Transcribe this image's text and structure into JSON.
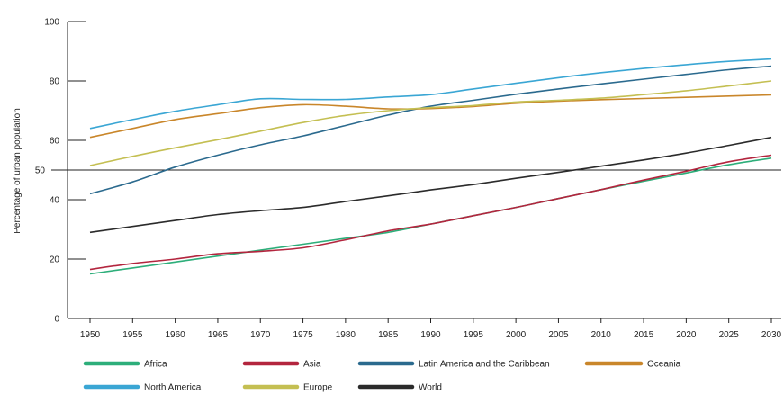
{
  "chart_data": {
    "type": "line",
    "ylabel": "Percentage of urban population",
    "xlabel": "",
    "title": "",
    "x": [
      1950,
      1955,
      1960,
      1965,
      1970,
      1975,
      1980,
      1985,
      1990,
      1995,
      2000,
      2005,
      2010,
      2015,
      2020,
      2025,
      2030
    ],
    "xlim": [
      1950,
      2030
    ],
    "ylim": [
      0,
      100
    ],
    "yticks": [
      0,
      20,
      40,
      50,
      60,
      80,
      100
    ],
    "reference_line": 50,
    "grid": false,
    "legend_placement": "bottom",
    "series": [
      {
        "name": "Africa",
        "color": "#2dae7a",
        "values": [
          15,
          17,
          19,
          21,
          23,
          25,
          27,
          29,
          31.8,
          34.6,
          37.4,
          40.4,
          43.4,
          46.2,
          49,
          51.8,
          54
        ]
      },
      {
        "name": "Asia",
        "color": "#b3253e",
        "values": [
          16.5,
          18.5,
          20,
          21.8,
          22.6,
          23.8,
          26.5,
          29.5,
          31.8,
          34.6,
          37.4,
          40.4,
          43.4,
          46.6,
          49.6,
          52.8,
          55
        ]
      },
      {
        "name": "Latin America and the Caribbean",
        "color": "#2b6a8e",
        "values": [
          42,
          46,
          51,
          55,
          58.5,
          61.5,
          65,
          68.5,
          71.5,
          73.5,
          75.5,
          77.3,
          79,
          80.6,
          82.2,
          83.8,
          85
        ]
      },
      {
        "name": "Oceania",
        "color": "#c9862a",
        "values": [
          61,
          64,
          67,
          69,
          71,
          72,
          71.5,
          70.6,
          70.7,
          71.4,
          72.5,
          73.2,
          73.7,
          74.1,
          74.5,
          74.9,
          75.3
        ]
      },
      {
        "name": "North America",
        "color": "#3aa6d4",
        "values": [
          64,
          67,
          69.8,
          72,
          74,
          73.8,
          73.8,
          74.6,
          75.4,
          77.3,
          79.2,
          81.1,
          82.8,
          84.2,
          85.5,
          86.6,
          87.4
        ]
      },
      {
        "name": "Europe",
        "color": "#c4bf52",
        "values": [
          51.5,
          54.6,
          57.5,
          60.2,
          63.1,
          66,
          68.4,
          70,
          71,
          71.7,
          72.9,
          73.5,
          74.2,
          75.4,
          76.7,
          78.3,
          80
        ]
      },
      {
        "name": "World",
        "color": "#2b2b2b",
        "values": [
          29,
          31,
          33,
          35,
          36.3,
          37.4,
          39.4,
          41.3,
          43.3,
          45.1,
          47.2,
          49.2,
          51.3,
          53.4,
          55.7,
          58.3,
          61
        ]
      }
    ]
  }
}
